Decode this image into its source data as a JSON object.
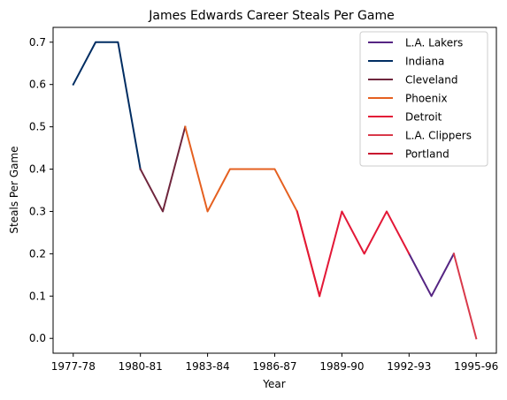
{
  "chart_data": {
    "type": "line",
    "title": "James Edwards  Career Steals Per Game",
    "xlabel": "Year",
    "ylabel": "Steals Per Game",
    "x_tick_labels": [
      "1977-78",
      "1980-81",
      "1983-84",
      "1986-87",
      "1989-90",
      "1992-93",
      "1995-96"
    ],
    "y_tick_labels": [
      "0.0",
      "0.1",
      "0.2",
      "0.3",
      "0.4",
      "0.5",
      "0.6",
      "0.7"
    ],
    "xlim": [
      -0.9,
      18.9
    ],
    "ylim": [
      -0.035,
      0.735
    ],
    "grid": false,
    "legend_position": "top-right",
    "series": [
      {
        "name": "L.A. Lakers",
        "color": "#552583",
        "x": [
          0,
          1,
          2,
          3,
          4,
          5,
          6,
          7,
          8,
          9,
          10,
          11,
          12,
          13,
          14,
          15,
          16,
          17,
          18
        ],
        "y": [
          0.6,
          0.7,
          0.7,
          0.4,
          0.3,
          0.5,
          0.3,
          0.4,
          0.4,
          0.4,
          0.3,
          0.1,
          0.3,
          0.2,
          0.3,
          0.2,
          0.1,
          0.2,
          0.0
        ],
        "visible_ranges": [
          [
            15,
            17
          ]
        ]
      },
      {
        "name": "Indiana",
        "color": "#002D62",
        "x": [
          0,
          1,
          2,
          3,
          4,
          5,
          6,
          7,
          8,
          9,
          10,
          11,
          12,
          13,
          14,
          15,
          16,
          17,
          18
        ],
        "y": [
          0.6,
          0.7,
          0.7,
          0.4,
          0.3,
          0.5,
          0.3,
          0.4,
          0.4,
          0.4,
          0.3,
          0.1,
          0.3,
          0.2,
          0.3,
          0.2,
          0.1,
          0.2,
          0.0
        ],
        "visible_ranges": [
          [
            0,
            3
          ]
        ]
      },
      {
        "name": "Cleveland",
        "color": "#6F263D",
        "x": [
          0,
          1,
          2,
          3,
          4,
          5,
          6,
          7,
          8,
          9,
          10,
          11,
          12,
          13,
          14,
          15,
          16,
          17,
          18
        ],
        "y": [
          0.6,
          0.7,
          0.7,
          0.4,
          0.3,
          0.5,
          0.3,
          0.4,
          0.4,
          0.4,
          0.3,
          0.1,
          0.3,
          0.2,
          0.3,
          0.2,
          0.1,
          0.2,
          0.0
        ],
        "visible_ranges": [
          [
            3,
            5
          ]
        ]
      },
      {
        "name": "Phoenix",
        "color": "#E56020",
        "x": [
          0,
          1,
          2,
          3,
          4,
          5,
          6,
          7,
          8,
          9,
          10,
          11,
          12,
          13,
          14,
          15,
          16,
          17,
          18
        ],
        "y": [
          0.6,
          0.7,
          0.7,
          0.4,
          0.3,
          0.5,
          0.3,
          0.4,
          0.4,
          0.4,
          0.3,
          0.1,
          0.3,
          0.2,
          0.3,
          0.2,
          0.1,
          0.2,
          0.0
        ],
        "visible_ranges": [
          [
            5,
            11
          ]
        ]
      },
      {
        "name": "Detroit",
        "color": "#E31837",
        "x": [
          0,
          1,
          2,
          3,
          4,
          5,
          6,
          7,
          8,
          9,
          10,
          11,
          12,
          13,
          14,
          15,
          16,
          17,
          18
        ],
        "y": [
          0.6,
          0.7,
          0.7,
          0.4,
          0.3,
          0.5,
          0.3,
          0.4,
          0.4,
          0.4,
          0.3,
          0.1,
          0.3,
          0.2,
          0.3,
          0.2,
          0.1,
          0.2,
          0.0
        ],
        "visible_ranges": [
          [
            10,
            15
          ]
        ]
      },
      {
        "name": "L.A. Clippers",
        "color": "#D9394A",
        "x": [
          0,
          1,
          2,
          3,
          4,
          5,
          6,
          7,
          8,
          9,
          10,
          11,
          12,
          13,
          14,
          15,
          16,
          17,
          18
        ],
        "y": [
          0.6,
          0.7,
          0.7,
          0.4,
          0.3,
          0.5,
          0.3,
          0.4,
          0.4,
          0.4,
          0.3,
          0.1,
          0.3,
          0.2,
          0.3,
          0.2,
          0.1,
          0.2,
          0.0
        ],
        "visible_ranges": [
          [
            17,
            18
          ]
        ]
      },
      {
        "name": "Portland",
        "color": "#C8102E",
        "x": [
          0,
          1,
          2,
          3,
          4,
          5,
          6,
          7,
          8,
          9,
          10,
          11,
          12,
          13,
          14,
          15,
          16,
          17,
          18
        ],
        "y": [
          0.6,
          0.7,
          0.7,
          0.4,
          0.3,
          0.5,
          0.3,
          0.4,
          0.4,
          0.4,
          0.3,
          0.1,
          0.3,
          0.2,
          0.3,
          0.2,
          0.1,
          0.2,
          0.0
        ],
        "visible_ranges": []
      }
    ]
  }
}
